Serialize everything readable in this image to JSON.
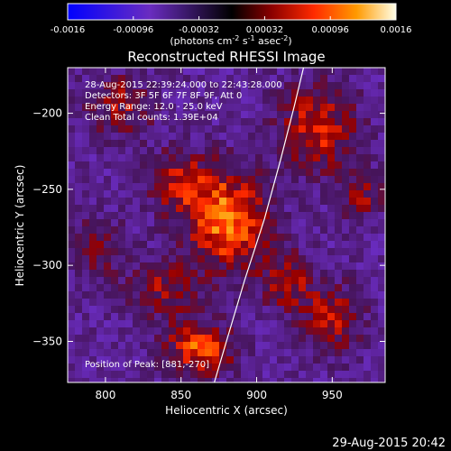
{
  "chart_data": {
    "type": "heatmap",
    "title": "Reconstructed RHESSI Image",
    "xlabel": "Heliocentric X (arcsec)",
    "ylabel": "Heliocentric Y (arcsec)",
    "xlim": [
      775,
      985
    ],
    "ylim": [
      -377,
      -170
    ],
    "x_ticks": [
      800,
      850,
      900,
      950
    ],
    "y_ticks": [
      -200,
      -250,
      -300,
      -350
    ],
    "colorbar": {
      "range": [
        -0.0016,
        0.0016
      ],
      "ticks": [
        -0.0016,
        -0.00096,
        -0.00032,
        0.00032,
        0.00096,
        0.0016
      ],
      "tick_labels": [
        "-0.0016",
        "-0.00096",
        "-0.00032",
        "0.00032",
        "0.00096",
        "0.0016"
      ],
      "unit_label": "(photons cm",
      "unit_sup1": "-2",
      "unit_mid": " s",
      "unit_sup2": "-1",
      "unit_end": " asec",
      "unit_sup3": "-2",
      "unit_close": ")"
    },
    "annotations": [
      "28-Aug-2015 22:39:24.000 to 22:43:28.000",
      "Detectors: 3F 5F 6F 7F 8F 9F, Att 0",
      "Energy Range: 12.0 - 25.0 keV",
      "Clean     Total counts: 1.39E+04"
    ],
    "peak_label": "Position of Peak: [881,-270]",
    "sources": [
      {
        "x": 880,
        "y": -270,
        "strength": 0.0016,
        "sx": 18,
        "sy": 22
      },
      {
        "x": 862,
        "y": -355,
        "strength": 0.0013,
        "sx": 16,
        "sy": 12
      },
      {
        "x": 848,
        "y": -245,
        "strength": 0.0009,
        "sx": 14,
        "sy": 14
      },
      {
        "x": 940,
        "y": -210,
        "strength": 0.0011,
        "sx": 18,
        "sy": 20
      },
      {
        "x": 810,
        "y": -195,
        "strength": 0.0008,
        "sx": 16,
        "sy": 14
      },
      {
        "x": 920,
        "y": -310,
        "strength": 0.0009,
        "sx": 12,
        "sy": 14
      },
      {
        "x": 950,
        "y": -335,
        "strength": 0.0009,
        "sx": 14,
        "sy": 16
      },
      {
        "x": 840,
        "y": -315,
        "strength": 0.0008,
        "sx": 16,
        "sy": 14
      },
      {
        "x": 795,
        "y": -290,
        "strength": 0.0006,
        "sx": 12,
        "sy": 16
      },
      {
        "x": 970,
        "y": -255,
        "strength": 0.0007,
        "sx": 10,
        "sy": 12
      }
    ],
    "limb_curve": [
      [
        872,
        -377
      ],
      [
        880,
        -350
      ],
      [
        892,
        -310
      ],
      [
        905,
        -270
      ],
      [
        916,
        -230
      ],
      [
        925,
        -195
      ],
      [
        931,
        -170
      ]
    ]
  },
  "footer_timestamp": "29-Aug-2015 20:42"
}
